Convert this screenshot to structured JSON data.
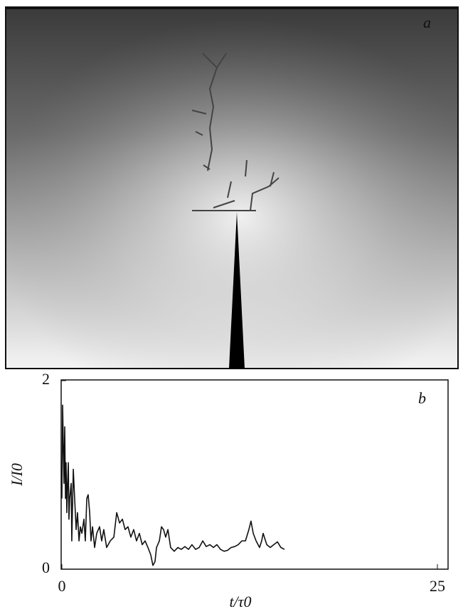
{
  "panel_a": {
    "label": "a"
  },
  "chart_data": {
    "type": "line",
    "annotation": "b",
    "xlabel": "t/τ0",
    "ylabel": "I/I0",
    "xlim": [
      0,
      25
    ],
    "ylim": [
      0,
      2
    ],
    "xticks": [
      0,
      25
    ],
    "yticks": [
      0,
      2
    ],
    "grid": false,
    "x": [
      0.0,
      0.05,
      0.09,
      0.14,
      0.19,
      0.24,
      0.28,
      0.33,
      0.38,
      0.43,
      0.47,
      0.52,
      0.62,
      0.66,
      0.76,
      0.85,
      0.95,
      1.04,
      1.14,
      1.23,
      1.33,
      1.47,
      1.56,
      1.66,
      1.75,
      1.85,
      1.94,
      2.04,
      2.18,
      2.32,
      2.51,
      2.65,
      2.79,
      2.98,
      3.22,
      3.46,
      3.65,
      3.84,
      4.03,
      4.21,
      4.4,
      4.59,
      4.78,
      4.97,
      5.16,
      5.35,
      5.54,
      5.73,
      5.92,
      6.06,
      6.2,
      6.3,
      6.49,
      6.63,
      6.77,
      6.91,
      7.06,
      7.24,
      7.48,
      7.72,
      7.95,
      8.19,
      8.43,
      8.66,
      8.9,
      9.14,
      9.38,
      9.61,
      9.85,
      10.09,
      10.32,
      10.56,
      10.8,
      11.03,
      11.27,
      11.51,
      11.74,
      11.98,
      12.22,
      12.45,
      12.59,
      12.74,
      12.93,
      13.16,
      13.3,
      13.4,
      13.64,
      13.87,
      14.11,
      14.35,
      14.58,
      14.82
    ],
    "series": [
      {
        "color": "#111111",
        "values": [
          0.75,
          1.74,
          1.36,
          0.91,
          1.51,
          0.75,
          1.13,
          0.6,
          0.91,
          1.13,
          0.53,
          0.75,
          0.91,
          0.3,
          1.06,
          0.75,
          0.42,
          0.6,
          0.3,
          0.45,
          0.38,
          0.53,
          0.3,
          0.75,
          0.79,
          0.6,
          0.3,
          0.45,
          0.23,
          0.38,
          0.45,
          0.3,
          0.42,
          0.23,
          0.3,
          0.34,
          0.6,
          0.49,
          0.53,
          0.42,
          0.45,
          0.34,
          0.42,
          0.3,
          0.38,
          0.26,
          0.3,
          0.23,
          0.15,
          0.04,
          0.08,
          0.23,
          0.3,
          0.45,
          0.42,
          0.34,
          0.42,
          0.23,
          0.19,
          0.23,
          0.21,
          0.24,
          0.21,
          0.26,
          0.21,
          0.23,
          0.3,
          0.24,
          0.26,
          0.23,
          0.26,
          0.21,
          0.19,
          0.2,
          0.23,
          0.24,
          0.26,
          0.3,
          0.3,
          0.42,
          0.51,
          0.38,
          0.3,
          0.23,
          0.3,
          0.38,
          0.26,
          0.23,
          0.26,
          0.29,
          0.23,
          0.21
        ]
      }
    ]
  }
}
